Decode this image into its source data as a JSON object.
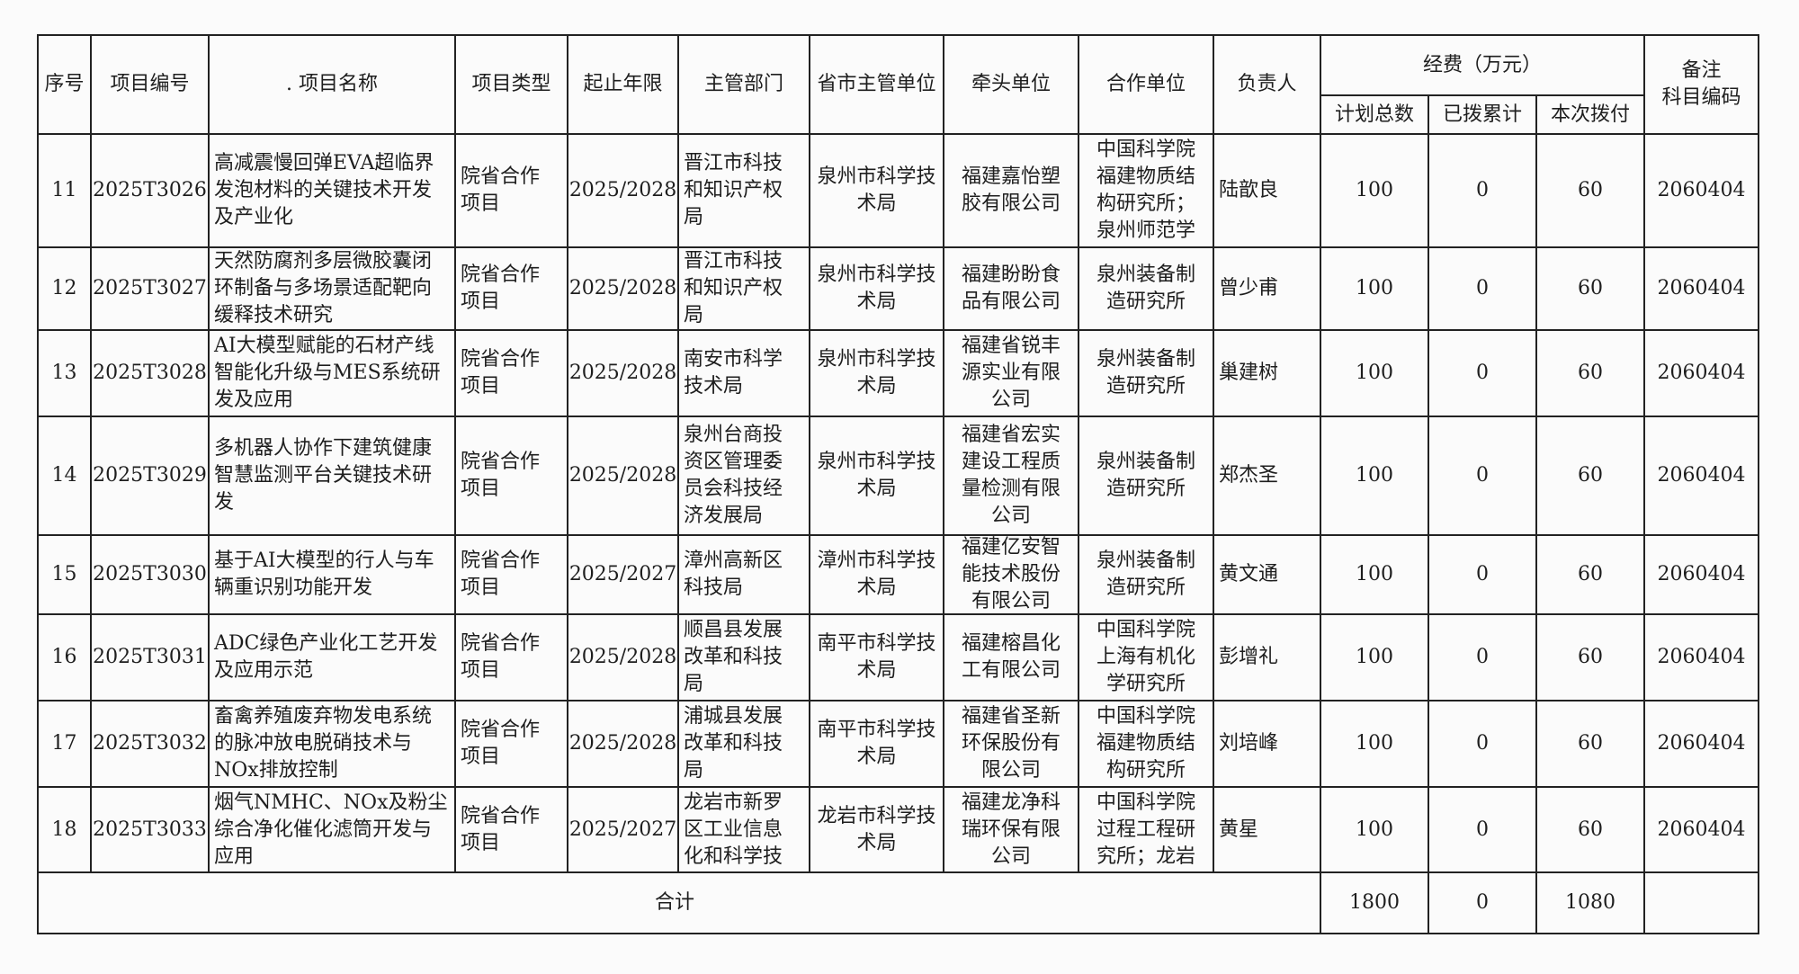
{
  "header": {
    "seq": "序号",
    "code": "项目编号",
    "name": ". 项目名称",
    "type": "项目类型",
    "period": "起止年限",
    "dept": "主管部门",
    "prov_unit": "省市主管单位",
    "lead_unit": "牵头单位",
    "partner": "合作单位",
    "leader": "负责人",
    "funding": "经费（万元）",
    "plan_total": "计划总数",
    "allocated": "已拨累计",
    "current": "本次拨付",
    "remark": "备注\n科目编码"
  },
  "rows": [
    {
      "seq": "11",
      "code": "2025T3026",
      "name": "高减震慢回弹EVA超临界\n发泡材料的关键技术开发\n及产业化",
      "type": "院省合作\n项目",
      "period": "2025/2028",
      "dept": "晋江市科技\n和知识产权\n局",
      "prov_unit": "泉州市科学技\n术局",
      "lead_unit": "福建嘉怡塑\n胶有限公司",
      "partner": "中国科学院\n福建物质结\n构研究所；\n泉州师范学",
      "leader": "陆歆良",
      "plan_total": "100",
      "allocated": "0",
      "current": "60",
      "remark": "2060404"
    },
    {
      "seq": "12",
      "code": "2025T3027",
      "name": "天然防腐剂多层微胶囊闭\n环制备与多场景适配靶向\n缓释技术研究",
      "type": "院省合作\n项目",
      "period": "2025/2028",
      "dept": "晋江市科技\n和知识产权\n局",
      "prov_unit": "泉州市科学技\n术局",
      "lead_unit": "福建盼盼食\n品有限公司",
      "partner": "泉州装备制\n造研究所",
      "leader": "曾少甫",
      "plan_total": "100",
      "allocated": "0",
      "current": "60",
      "remark": "2060404"
    },
    {
      "seq": "13",
      "code": "2025T3028",
      "name": "AI大模型赋能的石材产线\n智能化升级与MES系统研\n发及应用",
      "type": "院省合作\n项目",
      "period": "2025/2028",
      "dept": "南安市科学\n技术局",
      "prov_unit": "泉州市科学技\n术局",
      "lead_unit": "福建省锐丰\n源实业有限\n公司",
      "partner": "泉州装备制\n造研究所",
      "leader": "巢建树",
      "plan_total": "100",
      "allocated": "0",
      "current": "60",
      "remark": "2060404"
    },
    {
      "seq": "14",
      "code": "2025T3029",
      "name": "多机器人协作下建筑健康\n智慧监测平台关键技术研\n发",
      "type": "院省合作\n项目",
      "period": "2025/2028",
      "dept": "泉州台商投\n资区管理委\n员会科技经\n济发展局",
      "prov_unit": "泉州市科学技\n术局",
      "lead_unit": "福建省宏实\n建设工程质\n量检测有限\n公司",
      "partner": "泉州装备制\n造研究所",
      "leader": "郑杰圣",
      "plan_total": "100",
      "allocated": "0",
      "current": "60",
      "remark": "2060404"
    },
    {
      "seq": "15",
      "code": "2025T3030",
      "name": "基于AI大模型的行人与车\n辆重识别功能开发",
      "type": "院省合作\n项目",
      "period": "2025/2027",
      "dept": "漳州高新区\n科技局",
      "prov_unit": "漳州市科学技\n术局",
      "lead_unit": "福建亿安智\n能技术股份\n有限公司",
      "partner": "泉州装备制\n造研究所",
      "leader": "黄文通",
      "plan_total": "100",
      "allocated": "0",
      "current": "60",
      "remark": "2060404"
    },
    {
      "seq": "16",
      "code": "2025T3031",
      "name": "ADC绿色产业化工艺开发\n及应用示范",
      "type": "院省合作\n项目",
      "period": "2025/2028",
      "dept": "顺昌县发展\n改革和科技\n局",
      "prov_unit": "南平市科学技\n术局",
      "lead_unit": "福建榕昌化\n工有限公司",
      "partner": "中国科学院\n上海有机化\n学研究所",
      "leader": "彭增礼",
      "plan_total": "100",
      "allocated": "0",
      "current": "60",
      "remark": "2060404"
    },
    {
      "seq": "17",
      "code": "2025T3032",
      "name": "畜禽养殖废弃物发电系统\n的脉冲放电脱硝技术与\nNOx排放控制",
      "type": "院省合作\n项目",
      "period": "2025/2028",
      "dept": "浦城县发展\n改革和科技\n局",
      "prov_unit": "南平市科学技\n术局",
      "lead_unit": "福建省圣新\n环保股份有\n限公司",
      "partner": "中国科学院\n福建物质结\n构研究所",
      "leader": "刘培峰",
      "plan_total": "100",
      "allocated": "0",
      "current": "60",
      "remark": "2060404"
    },
    {
      "seq": "18",
      "code": "2025T3033",
      "name": "烟气NMHC、NOx及粉尘\n综合净化催化滤筒开发与\n应用",
      "type": "院省合作\n项目",
      "period": "2025/2027",
      "dept": "龙岩市新罗\n区工业信息\n化和科学技",
      "prov_unit": "龙岩市科学技\n术局",
      "lead_unit": "福建龙净科\n瑞环保有限\n公司",
      "partner": "中国科学院\n过程工程研\n究所；龙岩",
      "leader": "黄星",
      "plan_total": "100",
      "allocated": "0",
      "current": "60",
      "remark": "2060404"
    }
  ],
  "total": {
    "label": "合计",
    "plan_total": "1800",
    "allocated": "0",
    "current": "1080",
    "remark": ""
  }
}
